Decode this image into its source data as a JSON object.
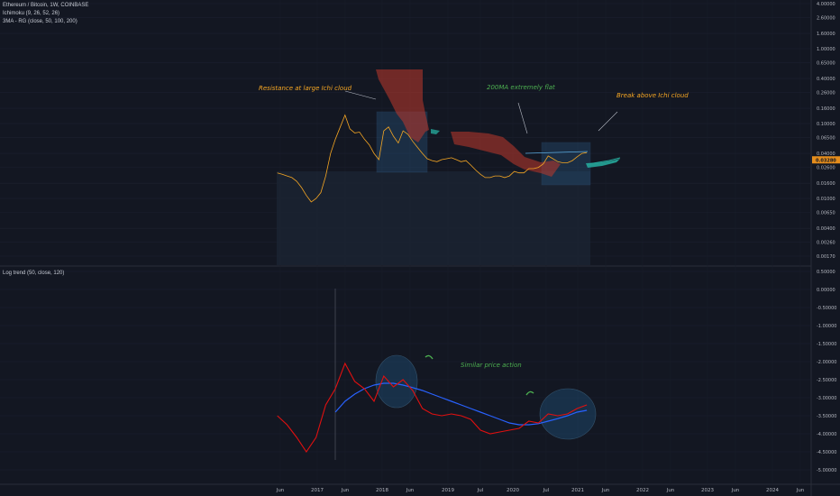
{
  "legend": {
    "symbol": "Ethereum / Bitcoin, 1W, COINBASE",
    "ichimoku": "Ichimoku (9, 26, 52, 26)",
    "sma": "3MA - RG (close, 50, 100, 200)",
    "log_trend": "Log trend (50, close, 120)"
  },
  "colors": {
    "background": "#131722",
    "price": "#f5a623",
    "cloud_bear": "#c0392b",
    "cloud_bull": "#26a69a",
    "ma200": "#5dade2",
    "log_trend": "#e01010",
    "log_trend_ma": "#2962ff",
    "annotation_orange": "#f5a623",
    "annotation_green": "#4caf50",
    "box": "#2a5a85"
  },
  "chart_data": [
    {
      "type": "line",
      "panel": "price",
      "scale": "log",
      "y_ticks": [
        "4.00000",
        "2.60000",
        "1.60000",
        "1.00000",
        "0.65000",
        "0.40000",
        "0.26000",
        "0.16000",
        "0.10000",
        "0.06500",
        "0.04000",
        "0.02600",
        "0.01600",
        "0.01000",
        "0.00650",
        "0.00400",
        "0.00260",
        "0.00170"
      ],
      "last_price": "0.03280",
      "annotations": [
        {
          "text": "Resistance at large Ichi cloud",
          "color": "orange"
        },
        {
          "text": "200MA extremely flat",
          "color": "green"
        },
        {
          "text": "Break above Ichi cloud",
          "color": "orange"
        }
      ],
      "series": [
        {
          "name": "Ethereum / Bitcoin",
          "x": [
            "2016-05-15",
            "2016-06-12",
            "2016-07-10",
            "2016-08-07",
            "2016-09-04",
            "2016-10-02",
            "2016-10-30",
            "2016-11-27",
            "2016-12-25",
            "2017-01-22",
            "2017-02-19",
            "2017-03-19",
            "2017-04-16",
            "2017-05-14",
            "2017-06-11",
            "2017-07-09",
            "2017-08-06",
            "2017-09-03",
            "2017-10-01",
            "2017-10-29",
            "2017-11-26",
            "2017-12-24",
            "2018-01-21",
            "2018-02-18",
            "2018-03-18",
            "2018-04-15",
            "2018-05-13",
            "2018-06-10",
            "2018-07-08",
            "2018-08-05",
            "2018-09-02",
            "2018-09-30",
            "2018-10-28",
            "2018-11-25",
            "2018-12-23",
            "2019-01-20",
            "2019-02-17",
            "2019-03-17",
            "2019-04-14",
            "2019-05-12",
            "2019-06-09",
            "2019-07-07",
            "2019-08-04",
            "2019-09-01",
            "2019-09-29",
            "2019-10-27",
            "2019-11-24",
            "2019-12-22",
            "2020-01-19",
            "2020-02-16",
            "2020-03-15",
            "2020-04-12",
            "2020-05-10",
            "2020-06-07",
            "2020-07-05",
            "2020-08-02",
            "2020-08-30",
            "2020-09-27",
            "2020-10-25",
            "2020-11-22",
            "2020-12-20",
            "2021-01-17",
            "2021-02-14",
            "2021-03-14",
            "2021-04-11"
          ],
          "y": [
            0.022,
            0.021,
            0.02,
            0.019,
            0.017,
            0.014,
            0.011,
            0.009,
            0.01,
            0.012,
            0.02,
            0.04,
            0.062,
            0.09,
            0.13,
            0.085,
            0.075,
            0.077,
            0.062,
            0.052,
            0.04,
            0.033,
            0.08,
            0.09,
            0.068,
            0.055,
            0.08,
            0.072,
            0.058,
            0.048,
            0.04,
            0.034,
            0.032,
            0.031,
            0.033,
            0.034,
            0.035,
            0.033,
            0.031,
            0.032,
            0.028,
            0.024,
            0.021,
            0.019,
            0.019,
            0.02,
            0.02,
            0.019,
            0.02,
            0.023,
            0.022,
            0.022,
            0.025,
            0.025,
            0.026,
            0.029,
            0.037,
            0.034,
            0.031,
            0.03,
            0.03,
            0.032,
            0.036,
            0.04,
            0.041
          ]
        }
      ]
    },
    {
      "type": "line",
      "panel": "log_trend",
      "y_ticks": [
        "0.50000",
        "0.00000",
        "-0.50000",
        "-1.00000",
        "-1.50000",
        "-2.00000",
        "-2.50000",
        "-3.00000",
        "-3.50000",
        "-4.00000",
        "-4.50000",
        "-5.00000"
      ],
      "annotations": [
        {
          "text": "Similar price action",
          "color": "green"
        }
      ],
      "series": [
        {
          "name": "Log trend",
          "x": [
            "2016-05-15",
            "2016-07-10",
            "2016-09-04",
            "2016-10-30",
            "2016-12-25",
            "2017-02-19",
            "2017-04-16",
            "2017-06-11",
            "2017-08-06",
            "2017-10-01",
            "2017-11-26",
            "2018-01-21",
            "2018-03-18",
            "2018-05-13",
            "2018-07-08",
            "2018-09-02",
            "2018-10-28",
            "2018-12-23",
            "2019-02-17",
            "2019-04-14",
            "2019-06-09",
            "2019-08-04",
            "2019-09-29",
            "2019-11-24",
            "2020-01-19",
            "2020-03-15",
            "2020-05-10",
            "2020-07-05",
            "2020-08-30",
            "2020-10-25",
            "2020-12-20",
            "2021-02-14",
            "2021-04-11"
          ],
          "y": [
            -3.5,
            -3.75,
            -4.1,
            -4.5,
            -4.1,
            -3.2,
            -2.75,
            -2.05,
            -2.55,
            -2.75,
            -3.1,
            -2.4,
            -2.7,
            -2.5,
            -2.8,
            -3.3,
            -3.45,
            -3.5,
            -3.45,
            -3.5,
            -3.6,
            -3.9,
            -4.0,
            -3.95,
            -3.9,
            -3.85,
            -3.65,
            -3.7,
            -3.45,
            -3.5,
            -3.45,
            -3.3,
            -3.2
          ]
        },
        {
          "name": "Trend MA",
          "x": [
            "2017-04-16",
            "2017-06-11",
            "2017-08-06",
            "2017-10-01",
            "2017-11-26",
            "2018-01-21",
            "2018-03-18",
            "2018-05-13",
            "2018-07-08",
            "2018-09-02",
            "2018-10-28",
            "2018-12-23",
            "2019-02-17",
            "2019-04-14",
            "2019-06-09",
            "2019-08-04",
            "2019-09-29",
            "2019-11-24",
            "2020-01-19",
            "2020-03-15",
            "2020-05-10",
            "2020-07-05",
            "2020-08-30",
            "2020-10-25",
            "2020-12-20",
            "2021-02-14",
            "2021-04-11"
          ],
          "y": [
            -3.4,
            -3.1,
            -2.9,
            -2.75,
            -2.65,
            -2.6,
            -2.6,
            -2.65,
            -2.72,
            -2.8,
            -2.9,
            -3.0,
            -3.1,
            -3.2,
            -3.3,
            -3.4,
            -3.5,
            -3.6,
            -3.7,
            -3.75,
            -3.75,
            -3.72,
            -3.65,
            -3.58,
            -3.5,
            -3.4,
            -3.35
          ]
        }
      ]
    }
  ],
  "x_axis": {
    "labels": [
      "Jun",
      "2017",
      "Jun",
      "2018",
      "Jun",
      "2019",
      "Jul",
      "2020",
      "Jul",
      "2021",
      "Jun",
      "2022",
      "Jun",
      "2023",
      "Jun",
      "2024",
      "Jun"
    ]
  }
}
